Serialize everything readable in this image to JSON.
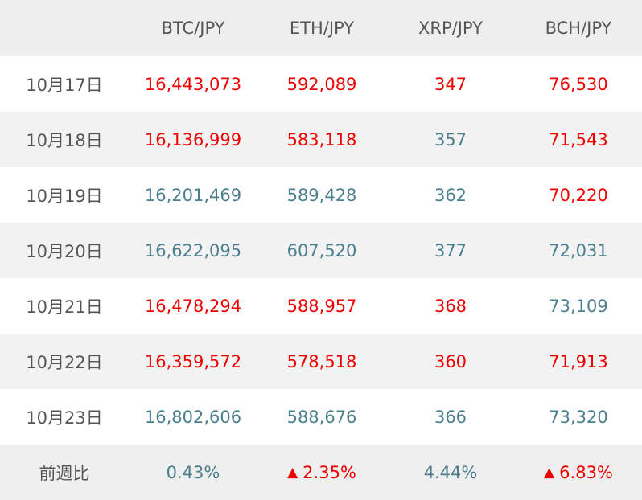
{
  "colors": {
    "up": "#ee0000",
    "down": "#4b7f8e",
    "header_bg": "#eeeeee",
    "stripe_bg": "#f2f2f2",
    "label_text": "#555555"
  },
  "table": {
    "headers": [
      "",
      "BTC/JPY",
      "ETH/JPY",
      "XRP/JPY",
      "BCH/JPY"
    ],
    "rows": [
      {
        "date": "10月17日",
        "cells": [
          {
            "value": "16,443,073",
            "trend": "up"
          },
          {
            "value": "592,089",
            "trend": "up"
          },
          {
            "value": "347",
            "trend": "up"
          },
          {
            "value": "76,530",
            "trend": "up"
          }
        ]
      },
      {
        "date": "10月18日",
        "cells": [
          {
            "value": "16,136,999",
            "trend": "up"
          },
          {
            "value": "583,118",
            "trend": "up"
          },
          {
            "value": "357",
            "trend": "down"
          },
          {
            "value": "71,543",
            "trend": "up"
          }
        ]
      },
      {
        "date": "10月19日",
        "cells": [
          {
            "value": "16,201,469",
            "trend": "down"
          },
          {
            "value": "589,428",
            "trend": "down"
          },
          {
            "value": "362",
            "trend": "down"
          },
          {
            "value": "70,220",
            "trend": "up"
          }
        ]
      },
      {
        "date": "10月20日",
        "cells": [
          {
            "value": "16,622,095",
            "trend": "down"
          },
          {
            "value": "607,520",
            "trend": "down"
          },
          {
            "value": "377",
            "trend": "down"
          },
          {
            "value": "72,031",
            "trend": "down"
          }
        ]
      },
      {
        "date": "10月21日",
        "cells": [
          {
            "value": "16,478,294",
            "trend": "up"
          },
          {
            "value": "588,957",
            "trend": "up"
          },
          {
            "value": "368",
            "trend": "up"
          },
          {
            "value": "73,109",
            "trend": "down"
          }
        ]
      },
      {
        "date": "10月22日",
        "cells": [
          {
            "value": "16,359,572",
            "trend": "up"
          },
          {
            "value": "578,518",
            "trend": "up"
          },
          {
            "value": "360",
            "trend": "up"
          },
          {
            "value": "71,913",
            "trend": "up"
          }
        ]
      },
      {
        "date": "10月23日",
        "cells": [
          {
            "value": "16,802,606",
            "trend": "down"
          },
          {
            "value": "588,676",
            "trend": "down"
          },
          {
            "value": "366",
            "trend": "down"
          },
          {
            "value": "73,320",
            "trend": "down"
          }
        ]
      }
    ],
    "summary": {
      "label": "前週比",
      "triangle": "▲",
      "cells": [
        {
          "value": "0.43%",
          "trend": "down",
          "marker": false
        },
        {
          "value": "2.35%",
          "trend": "up",
          "marker": true
        },
        {
          "value": "4.44%",
          "trend": "down",
          "marker": false
        },
        {
          "value": "6.83%",
          "trend": "up",
          "marker": true
        }
      ]
    }
  }
}
